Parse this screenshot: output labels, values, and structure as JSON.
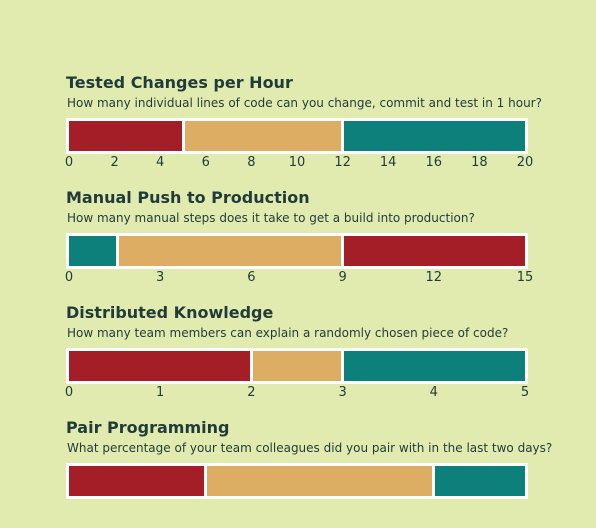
{
  "colors": {
    "background": "#e2ebaf",
    "teal": "#0e807c",
    "sand": "#dcad62",
    "red": "#a31e27",
    "text": "#1f3b3a",
    "border": "#ffffff"
  },
  "chart_data": [
    {
      "type": "bar",
      "orientation": "horizontal-stacked",
      "title": "",
      "question": "",
      "xlim": [
        0,
        20
      ],
      "ticks": [
        0,
        2,
        4,
        6,
        8,
        10,
        12,
        14,
        16,
        18,
        20
      ],
      "segments": [
        {
          "from": 0,
          "to": 4,
          "color": "teal"
        },
        {
          "from": 4,
          "to": 10,
          "color": "sand"
        },
        {
          "from": 10,
          "to": 20,
          "color": "red"
        }
      ]
    },
    {
      "type": "bar",
      "orientation": "horizontal-stacked",
      "title": "Tested Changes per Hour",
      "question": "How many individual lines of code can you change, commit and test in 1 hour?",
      "xlim": [
        0,
        20
      ],
      "ticks": [
        0,
        2,
        4,
        6,
        8,
        10,
        12,
        14,
        16,
        18,
        20
      ],
      "segments": [
        {
          "from": 0,
          "to": 5,
          "color": "red"
        },
        {
          "from": 5,
          "to": 12,
          "color": "sand"
        },
        {
          "from": 12,
          "to": 20,
          "color": "teal"
        }
      ]
    },
    {
      "type": "bar",
      "orientation": "horizontal-stacked",
      "title": "Manual Push to Production",
      "question": "How many manual steps does it take to get a build into production?",
      "xlim": [
        0,
        15
      ],
      "ticks": [
        0,
        3,
        6,
        9,
        12,
        15
      ],
      "segments": [
        {
          "from": 0,
          "to": 1.6,
          "color": "teal"
        },
        {
          "from": 1.6,
          "to": 9,
          "color": "sand"
        },
        {
          "from": 9,
          "to": 15,
          "color": "red"
        }
      ]
    },
    {
      "type": "bar",
      "orientation": "horizontal-stacked",
      "title": "Distributed Knowledge",
      "question": "How many team members can explain a randomly chosen piece of code?",
      "xlim": [
        0,
        5
      ],
      "ticks": [
        0,
        1,
        2,
        3,
        4,
        5
      ],
      "segments": [
        {
          "from": 0,
          "to": 2,
          "color": "red"
        },
        {
          "from": 2,
          "to": 3,
          "color": "sand"
        },
        {
          "from": 3,
          "to": 5,
          "color": "teal"
        }
      ]
    },
    {
      "type": "bar",
      "orientation": "horizontal-stacked",
      "title": "Pair Programming",
      "question": "What percentage of your team colleagues did you pair with in the last two days?",
      "xlim": [
        0,
        100
      ],
      "ticks": [],
      "segments": [
        {
          "from": 0,
          "to": 30,
          "color": "red"
        },
        {
          "from": 30,
          "to": 80,
          "color": "sand"
        },
        {
          "from": 80,
          "to": 100,
          "color": "teal"
        }
      ]
    }
  ]
}
